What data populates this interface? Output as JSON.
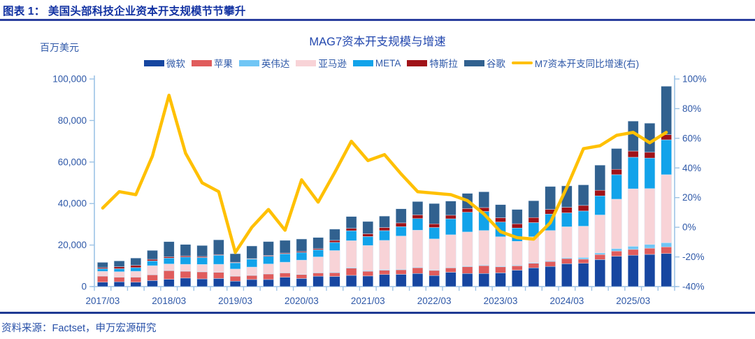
{
  "header": {
    "title": "图表 1： 美国头部科技企业资本开支规模节节攀升"
  },
  "chart": {
    "title": "MAG7资本开支规模与增速",
    "unit_label": "百万美元"
  },
  "chart_data": {
    "type": "bar",
    "subtype": "stacked-bars-with-line",
    "title": "MAG7资本开支规模与增速",
    "unit": "百万美元",
    "legend_position": "top",
    "grid": false,
    "categories": [
      "2017/03",
      "2017/06",
      "2017/09",
      "2017/12",
      "2018/03",
      "2018/06",
      "2018/09",
      "2018/12",
      "2019/03",
      "2019/06",
      "2019/09",
      "2019/12",
      "2020/03",
      "2020/06",
      "2020/09",
      "2020/12",
      "2021/03",
      "2021/06",
      "2021/09",
      "2021/12",
      "2022/03",
      "2022/06",
      "2022/09",
      "2022/12",
      "2023/03",
      "2023/06",
      "2023/09",
      "2023/12",
      "2024/03",
      "2024/06",
      "2024/09",
      "2024/12",
      "2025/03",
      "2025/06",
      "2025/09"
    ],
    "series": [
      {
        "name": "微软",
        "color": "#1646A0",
        "values": [
          2100,
          2300,
          2100,
          2900,
          3500,
          4100,
          3700,
          3900,
          2600,
          3400,
          3400,
          4500,
          3900,
          5000,
          4900,
          5400,
          5100,
          5800,
          5900,
          6300,
          5300,
          6900,
          6300,
          6300,
          6600,
          7900,
          9000,
          9700,
          11000,
          11200,
          13000,
          14600,
          15100,
          15500,
          15900
        ]
      },
      {
        "name": "苹果",
        "color": "#E05C5C",
        "values": [
          3000,
          2300,
          2500,
          2800,
          4200,
          3300,
          3400,
          3000,
          2400,
          2000,
          2700,
          2100,
          1900,
          1600,
          1800,
          3500,
          2300,
          2100,
          2200,
          2800,
          2500,
          2100,
          3300,
          3800,
          2900,
          2100,
          2200,
          2400,
          2500,
          2000,
          2400,
          2500,
          2800,
          3000,
          3200
        ]
      },
      {
        "name": "英伟达",
        "color": "#70C6F5",
        "values": [
          60,
          60,
          70,
          80,
          100,
          130,
          150,
          140,
          150,
          100,
          100,
          150,
          150,
          200,
          250,
          300,
          300,
          250,
          250,
          250,
          250,
          250,
          300,
          300,
          300,
          300,
          300,
          300,
          400,
          800,
          800,
          1200,
          1500,
          1800,
          2000
        ]
      },
      {
        "name": "亚马逊",
        "color": "#F8D3D7",
        "values": [
          2200,
          2500,
          2700,
          4300,
          3100,
          3200,
          3400,
          3700,
          3300,
          3900,
          4700,
          5000,
          6800,
          7500,
          10400,
          12900,
          12100,
          14100,
          16000,
          17800,
          14900,
          15700,
          16400,
          16600,
          14200,
          11500,
          12500,
          14600,
          14900,
          15100,
          18300,
          23800,
          27700,
          26900,
          32800
        ]
      },
      {
        "name": "META",
        "color": "#12A3EA",
        "values": [
          1270,
          1440,
          1760,
          2260,
          2800,
          3460,
          3340,
          4370,
          3000,
          3800,
          3700,
          4000,
          3700,
          3400,
          3900,
          4800,
          4300,
          4700,
          4500,
          5600,
          5500,
          7700,
          9500,
          9200,
          7100,
          6400,
          6800,
          7900,
          6700,
          7300,
          9200,
          11800,
          15200,
          14700,
          16800
        ]
      },
      {
        "name": "特斯拉",
        "color": "#A01218",
        "values": [
          550,
          960,
          1120,
          790,
          660,
          610,
          510,
          320,
          280,
          250,
          390,
          410,
          460,
          550,
          1010,
          1150,
          1350,
          1510,
          1820,
          1810,
          1770,
          1730,
          1800,
          1860,
          2070,
          2060,
          2460,
          2310,
          2700,
          2700,
          2700,
          2600,
          3000,
          2800,
          2500
        ]
      },
      {
        "name": "谷歌",
        "color": "#31618F",
        "values": [
          2480,
          2800,
          3500,
          4300,
          7300,
          5500,
          5300,
          7100,
          4100,
          6100,
          6700,
          6100,
          6000,
          5400,
          5400,
          5700,
          5900,
          5500,
          6800,
          6400,
          9800,
          6800,
          7300,
          7600,
          6300,
          6900,
          8100,
          11000,
          10300,
          9900,
          12100,
          10000,
          14400,
          14000,
          23300
        ]
      }
    ],
    "line_series": {
      "name": "M7资本开支同比增速(右)",
      "color": "#FFC000",
      "axis": "right",
      "values": [
        13,
        24,
        22,
        48,
        89,
        50,
        30,
        24,
        -17,
        0,
        12,
        -2,
        32,
        17,
        37,
        58,
        45,
        49,
        36,
        24,
        23,
        22,
        18,
        9,
        -3,
        -7,
        -8,
        3,
        27,
        53,
        55,
        62,
        64,
        57,
        64
      ]
    },
    "left_axis": {
      "label": "百万美元",
      "min": 0,
      "max": 100000,
      "tick_step": 20000,
      "tick_labels": [
        "0",
        "20,000",
        "40,000",
        "60,000",
        "80,000",
        "100,000"
      ]
    },
    "right_axis": {
      "min": -40,
      "max": 100,
      "tick_step": 20,
      "tick_labels": [
        "-40%",
        "-20%",
        "0%",
        "20%",
        "40%",
        "60%",
        "80%",
        "100%"
      ]
    },
    "x_axis": {
      "labeled_indices": [
        0,
        4,
        8,
        12,
        16,
        20,
        24,
        28,
        32
      ],
      "visible_labels": [
        "2017/03",
        "2018/03",
        "2019/03",
        "2020/03",
        "2021/03",
        "2022/03",
        "2023/03",
        "2024/03",
        "2025/03"
      ]
    },
    "axis_color": "#9DC3E6",
    "axis_text_color": "#2E58A8"
  },
  "footer": {
    "source": "资料来源：Factset，申万宏源研究"
  }
}
